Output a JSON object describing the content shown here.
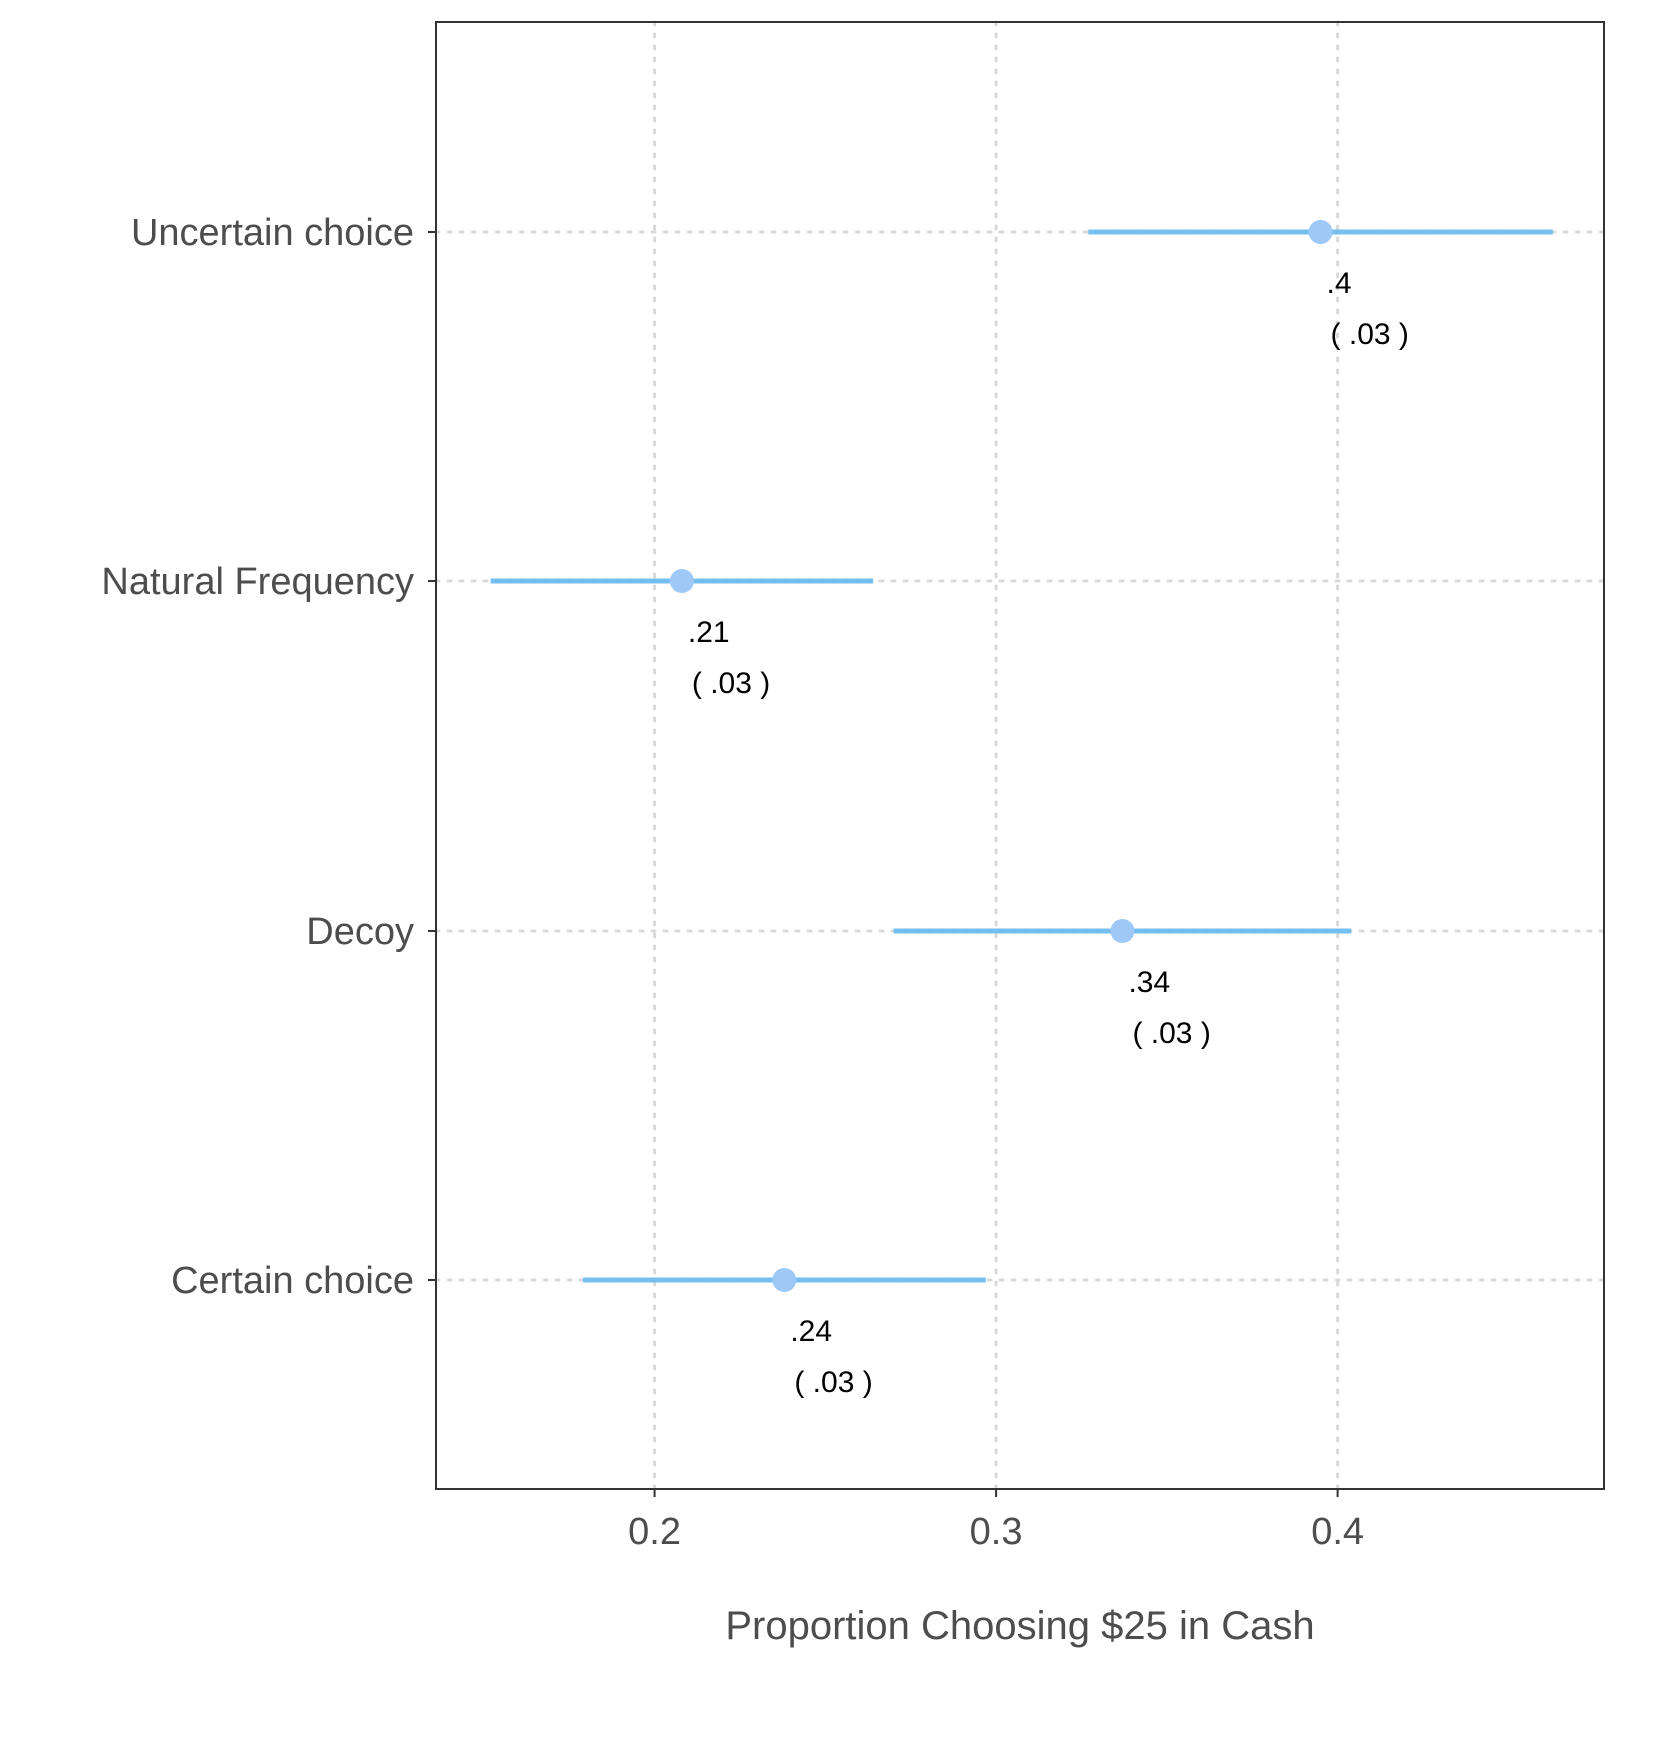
{
  "chart_data": {
    "type": "scatter",
    "xlabel": "Proportion Choosing $25 in Cash",
    "ylabel": "",
    "xlim": [
      0.136,
      0.478
    ],
    "x_ticks": [
      0.2,
      0.3,
      0.4
    ],
    "x_tick_labels": [
      "0.2",
      "0.3",
      "0.4"
    ],
    "categories": [
      "Uncertain choice",
      "Natural Frequency",
      "Decoy",
      "Certain choice"
    ],
    "series": [
      {
        "points": [
          {
            "category": "Uncertain choice",
            "x": 0.395,
            "ci_low": 0.327,
            "ci_high": 0.463,
            "label": ".4",
            "se_label": "( .03 )"
          },
          {
            "category": "Natural Frequency",
            "x": 0.208,
            "ci_low": 0.152,
            "ci_high": 0.264,
            "label": ".21",
            "se_label": "( .03 )"
          },
          {
            "category": "Decoy",
            "x": 0.337,
            "ci_low": 0.27,
            "ci_high": 0.404,
            "label": ".34",
            "se_label": "( .03 )"
          },
          {
            "category": "Certain choice",
            "x": 0.238,
            "ci_low": 0.179,
            "ci_high": 0.297,
            "label": ".24",
            "se_label": "( .03 )"
          }
        ]
      }
    ],
    "grid": "dotted major grid on both axes",
    "colors": {
      "interval": "#66b8f0",
      "point": "#9ec9f7",
      "grid": "#d9d9d9",
      "frame": "#333333"
    }
  }
}
